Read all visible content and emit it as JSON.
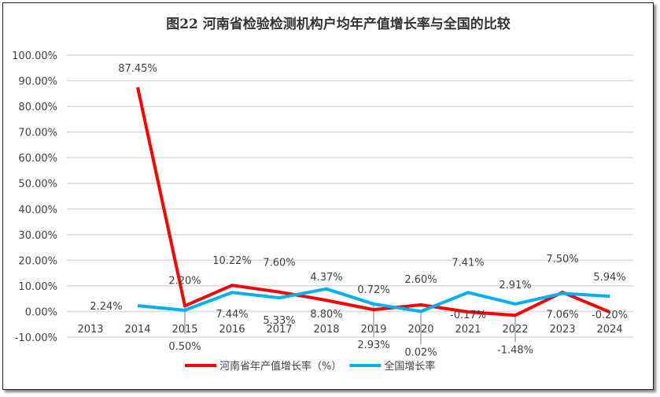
{
  "chart_data": {
    "type": "line",
    "title": "图22  河南省检验检测机构户均年产值增长率与全国的比较",
    "categories": [
      "2013",
      "2014",
      "2015",
      "2016",
      "2017",
      "2018",
      "2019",
      "2020",
      "2021",
      "2022",
      "2023",
      "2024"
    ],
    "ylim": [
      -10,
      100
    ],
    "yticks": [
      "100.00%",
      "90.00%",
      "80.00%",
      "70.00%",
      "60.00%",
      "50.00%",
      "40.00%",
      "30.00%",
      "20.00%",
      "10.00%",
      "0.00%",
      "-10.00%"
    ],
    "grid": true,
    "legend": "bottom",
    "series": [
      {
        "name": "河南省年产值增长率（%）",
        "color": "#ff0000",
        "values": [
          null,
          87.45,
          2.2,
          10.22,
          7.6,
          4.37,
          0.72,
          2.6,
          -0.17,
          -1.48,
          7.5,
          -0.2
        ],
        "labels": [
          "",
          "87.45%",
          "2.20%",
          "10.22%",
          "7.60%",
          "4.37%",
          "0.72%",
          "2.60%",
          "-0.17%",
          "-1.48%",
          "7.50%",
          "-0.20%"
        ]
      },
      {
        "name": "全国增长率",
        "color": "#00b0f0",
        "values": [
          null,
          2.24,
          0.5,
          7.44,
          5.33,
          8.8,
          2.93,
          0.02,
          7.41,
          2.91,
          7.06,
          5.94
        ],
        "labels": [
          "",
          "2.24%",
          "0.50%",
          "7.44%",
          "5.33%",
          "8.80%",
          "2.93%",
          "0.02%",
          "7.41%",
          "2.91%",
          "7.06%",
          "5.94%"
        ]
      }
    ]
  }
}
